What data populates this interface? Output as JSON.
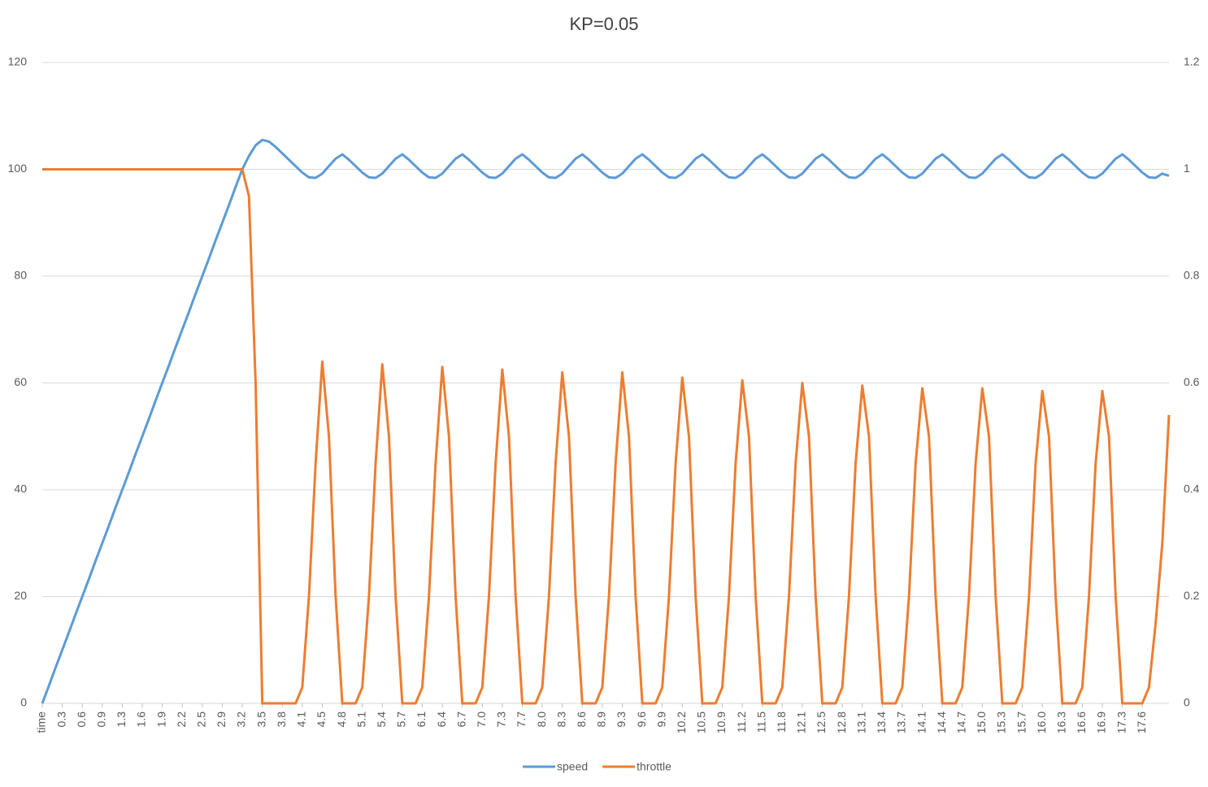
{
  "chart_data": {
    "type": "line",
    "title": "KP=0.05",
    "categories": [
      "time",
      null,
      null,
      "0.3",
      null,
      null,
      "0.6",
      null,
      null,
      "0.9",
      null,
      null,
      "1.3",
      null,
      null,
      "1.6",
      null,
      null,
      "1.9",
      null,
      null,
      "2.2",
      null,
      null,
      "2.5",
      null,
      null,
      "2.9",
      null,
      null,
      "3.2",
      null,
      null,
      "3.5",
      null,
      null,
      "3.8",
      null,
      null,
      "4.1",
      null,
      null,
      "4.5",
      null,
      null,
      "4.8",
      null,
      null,
      "5.1",
      null,
      null,
      "5.4",
      null,
      null,
      "5.7",
      null,
      null,
      "6.1",
      null,
      null,
      "6.4",
      null,
      null,
      "6.7",
      null,
      null,
      "7.0",
      null,
      null,
      "7.3",
      null,
      null,
      "7.7",
      null,
      null,
      "8.0",
      null,
      null,
      "8.3",
      null,
      null,
      "8.6",
      null,
      null,
      "8.9",
      null,
      null,
      "9.3",
      null,
      null,
      "9.6",
      null,
      null,
      "9.9",
      null,
      null,
      "10.2",
      null,
      null,
      "10.5",
      null,
      null,
      "10.9",
      null,
      null,
      "11.2",
      null,
      null,
      "11.5",
      null,
      null,
      "11.8",
      null,
      null,
      "12.1",
      null,
      null,
      "12.5",
      null,
      null,
      "12.8",
      null,
      null,
      "13.1",
      null,
      null,
      "13.4",
      null,
      null,
      "13.7",
      null,
      null,
      "14.1",
      null,
      null,
      "14.4",
      null,
      null,
      "14.7",
      null,
      null,
      "15.0",
      null,
      null,
      "15.3",
      null,
      null,
      "15.7",
      null,
      null,
      "16.0",
      null,
      null,
      "16.3",
      null,
      null,
      "16.6",
      null,
      null,
      "16.9",
      null,
      null,
      "17.3",
      null,
      null,
      "17.6",
      null,
      null,
      null,
      null
    ],
    "series": [
      {
        "name": "speed",
        "color": "#5b9bd5",
        "values": [
          0,
          3.3,
          6.7,
          10,
          13.3,
          16.7,
          20,
          23.3,
          26.7,
          30,
          33.3,
          36.7,
          40,
          43.3,
          46.7,
          50,
          53.3,
          56.7,
          60,
          63.3,
          66.7,
          70,
          73.3,
          76.7,
          80,
          83.3,
          86.7,
          90,
          93.3,
          96.7,
          100,
          102.5,
          104.5,
          105.5,
          105.2,
          104.2,
          103.0,
          101.8,
          100.6,
          99.4,
          98.5,
          98.4,
          99.2,
          100.6,
          102.0,
          102.8,
          101.8,
          100.6,
          99.4,
          98.5,
          98.4,
          99.2,
          100.6,
          102.0,
          102.8,
          101.8,
          100.6,
          99.4,
          98.5,
          98.4,
          99.2,
          100.6,
          102.0,
          102.8,
          101.8,
          100.6,
          99.4,
          98.5,
          98.4,
          99.2,
          100.6,
          102.0,
          102.8,
          101.8,
          100.6,
          99.4,
          98.5,
          98.4,
          99.2,
          100.6,
          102.0,
          102.8,
          101.8,
          100.6,
          99.4,
          98.5,
          98.4,
          99.2,
          100.6,
          102.0,
          102.8,
          101.8,
          100.6,
          99.4,
          98.5,
          98.4,
          99.2,
          100.6,
          102.0,
          102.8,
          101.8,
          100.6,
          99.4,
          98.5,
          98.4,
          99.2,
          100.6,
          102.0,
          102.8,
          101.8,
          100.6,
          99.4,
          98.5,
          98.4,
          99.2,
          100.6,
          102.0,
          102.8,
          101.8,
          100.6,
          99.4,
          98.5,
          98.4,
          99.2,
          100.6,
          102.0,
          102.8,
          101.8,
          100.6,
          99.4,
          98.5,
          98.4,
          99.2,
          100.6,
          102.0,
          102.8,
          101.8,
          100.6,
          99.4,
          98.5,
          98.4,
          99.2,
          100.6,
          102.0,
          102.8,
          101.8,
          100.6,
          99.4,
          98.5,
          98.4,
          99.2,
          100.6,
          102.0,
          102.8,
          101.8,
          100.6,
          99.4,
          98.5,
          98.4,
          99.2,
          100.6,
          102.0,
          102.8,
          101.8,
          100.6,
          99.4,
          98.5,
          98.4,
          99.2,
          98.8
        ]
      },
      {
        "name": "throttle",
        "color": "#ed7d31",
        "axis": "y2",
        "values": [
          1,
          1,
          1,
          1,
          1,
          1,
          1,
          1,
          1,
          1,
          1,
          1,
          1,
          1,
          1,
          1,
          1,
          1,
          1,
          1,
          1,
          1,
          1,
          1,
          1,
          1,
          1,
          1,
          1,
          1,
          1,
          0.95,
          0.6,
          0,
          0,
          0,
          0,
          0,
          0,
          0.03,
          0.2,
          0.45,
          0.64,
          0.5,
          0.2,
          0,
          0,
          0,
          0.03,
          0.2,
          0.45,
          0.635,
          0.5,
          0.2,
          0,
          0,
          0,
          0.03,
          0.2,
          0.45,
          0.63,
          0.5,
          0.2,
          0,
          0,
          0,
          0.03,
          0.2,
          0.45,
          0.625,
          0.5,
          0.2,
          0,
          0,
          0,
          0.03,
          0.2,
          0.45,
          0.62,
          0.5,
          0.2,
          0,
          0,
          0,
          0.03,
          0.2,
          0.45,
          0.62,
          0.5,
          0.2,
          0,
          0,
          0,
          0.03,
          0.2,
          0.45,
          0.61,
          0.5,
          0.2,
          0,
          0,
          0,
          0.03,
          0.2,
          0.45,
          0.605,
          0.5,
          0.2,
          0,
          0,
          0,
          0.03,
          0.2,
          0.45,
          0.6,
          0.5,
          0.2,
          0,
          0,
          0,
          0.03,
          0.2,
          0.45,
          0.595,
          0.5,
          0.2,
          0,
          0,
          0,
          0.03,
          0.2,
          0.45,
          0.59,
          0.5,
          0.2,
          0,
          0,
          0,
          0.03,
          0.2,
          0.45,
          0.59,
          0.5,
          0.2,
          0,
          0,
          0,
          0.03,
          0.2,
          0.45,
          0.585,
          0.5,
          0.2,
          0,
          0,
          0,
          0.03,
          0.2,
          0.45,
          0.585,
          0.5,
          0.2,
          0,
          0,
          0,
          0,
          0.03,
          0.15,
          0.3,
          0.54
        ]
      }
    ],
    "ylim": [
      0,
      120
    ],
    "yticks": [
      0,
      20,
      40,
      60,
      80,
      100,
      120
    ],
    "y2lim": [
      0,
      1.2
    ],
    "y2ticks": [
      0,
      0.2,
      0.4,
      0.6,
      0.8,
      1,
      1.2
    ],
    "grid": true,
    "legend": "bottom"
  }
}
